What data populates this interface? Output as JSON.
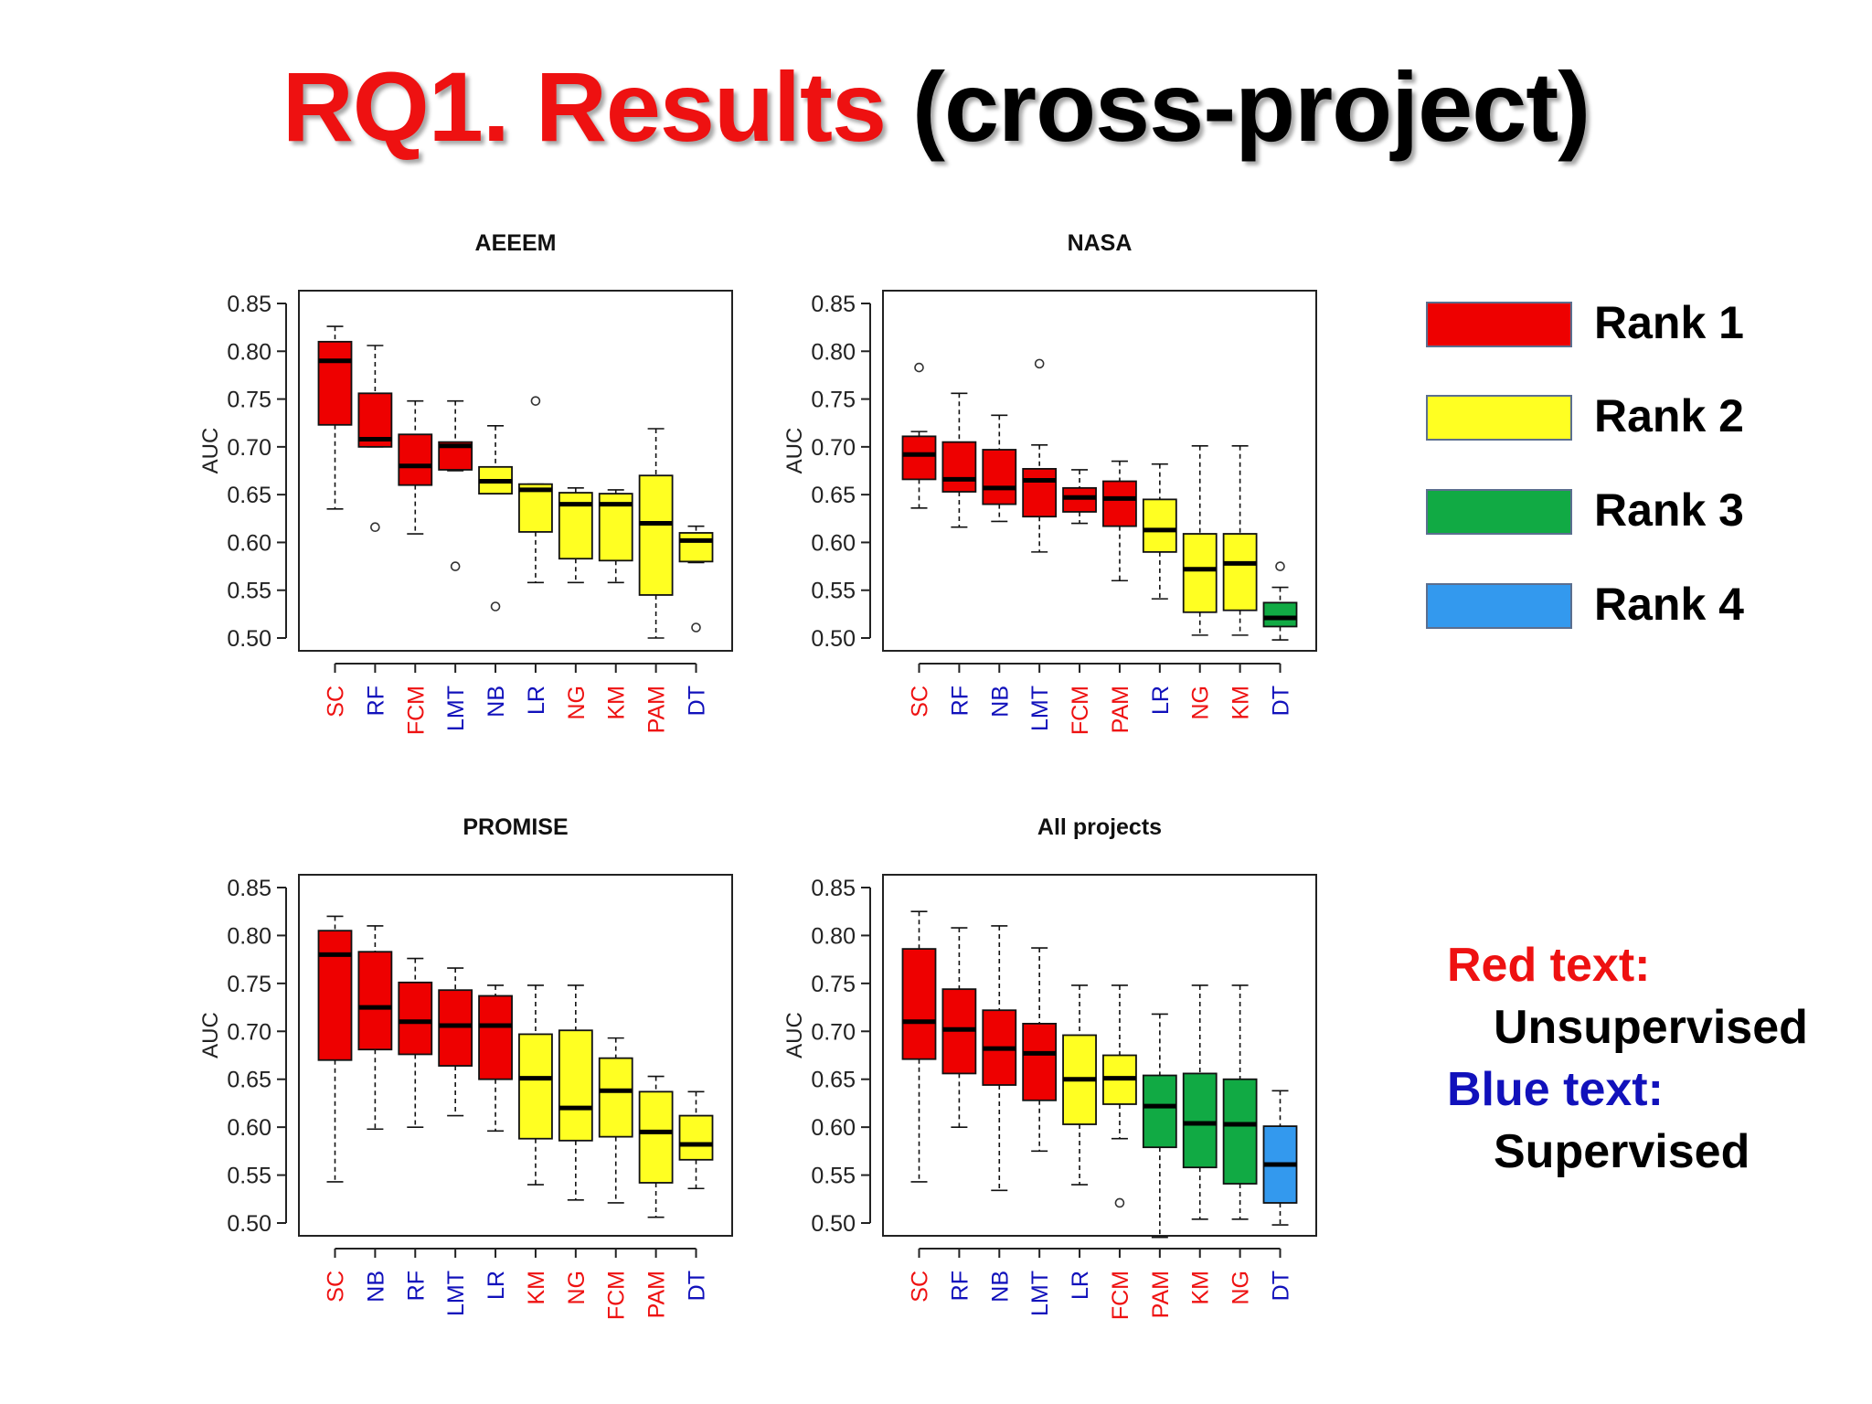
{
  "slide": {
    "title_red": "RQ1. Results",
    "title_black": "(cross-project)"
  },
  "colors": {
    "rank1": "#ee0000",
    "rank2": "#ffff22",
    "rank3": "#11aa44",
    "rank4": "#3399ee",
    "unsupervised_text": "#ee1111",
    "supervised_text": "#1111bb"
  },
  "legend": [
    {
      "label": "Rank 1",
      "color": "#ee0000"
    },
    {
      "label": "Rank 2",
      "color": "#ffff22"
    },
    {
      "label": "Rank 3",
      "color": "#11aa44"
    },
    {
      "label": "Rank 4",
      "color": "#3399ee"
    }
  ],
  "notes": {
    "red_heading": "Red text:",
    "red_desc": "Unsupervised",
    "blue_heading": "Blue text:",
    "blue_desc": "Supervised"
  },
  "chart_data": [
    {
      "type": "boxplot",
      "title": "AEEEM",
      "ylabel": "AUC",
      "ylim": [
        0.5,
        0.85
      ],
      "yticks": [
        "0.50",
        "0.55",
        "0.60",
        "0.65",
        "0.70",
        "0.75",
        "0.80",
        "0.85"
      ],
      "boxes": [
        {
          "name": "SC",
          "learner": "unsupervised",
          "rank": 1,
          "low": 0.635,
          "q1": 0.723,
          "median": 0.79,
          "q3": 0.81,
          "high": 0.826,
          "outliers": []
        },
        {
          "name": "RF",
          "learner": "supervised",
          "rank": 1,
          "low": 0.7,
          "q1": 0.7,
          "median": 0.708,
          "q3": 0.756,
          "high": 0.806,
          "outliers": [
            0.616
          ]
        },
        {
          "name": "FCM",
          "learner": "unsupervised",
          "rank": 1,
          "low": 0.609,
          "q1": 0.66,
          "median": 0.68,
          "q3": 0.713,
          "high": 0.748,
          "outliers": []
        },
        {
          "name": "LMT",
          "learner": "supervised",
          "rank": 1,
          "low": 0.675,
          "q1": 0.676,
          "median": 0.701,
          "q3": 0.705,
          "high": 0.748,
          "outliers": [
            0.575
          ]
        },
        {
          "name": "NB",
          "learner": "supervised",
          "rank": 2,
          "low": 0.651,
          "q1": 0.651,
          "median": 0.664,
          "q3": 0.679,
          "high": 0.722,
          "outliers": [
            0.533
          ]
        },
        {
          "name": "LR",
          "learner": "supervised",
          "rank": 2,
          "low": 0.558,
          "q1": 0.611,
          "median": 0.655,
          "q3": 0.661,
          "high": 0.661,
          "outliers": [
            0.748
          ]
        },
        {
          "name": "NG",
          "learner": "unsupervised",
          "rank": 2,
          "low": 0.558,
          "q1": 0.583,
          "median": 0.64,
          "q3": 0.652,
          "high": 0.657,
          "outliers": []
        },
        {
          "name": "KM",
          "learner": "unsupervised",
          "rank": 2,
          "low": 0.558,
          "q1": 0.581,
          "median": 0.64,
          "q3": 0.651,
          "high": 0.655,
          "outliers": []
        },
        {
          "name": "PAM",
          "learner": "unsupervised",
          "rank": 2,
          "low": 0.5,
          "q1": 0.545,
          "median": 0.62,
          "q3": 0.67,
          "high": 0.719,
          "outliers": []
        },
        {
          "name": "DT",
          "learner": "supervised",
          "rank": 2,
          "low": 0.579,
          "q1": 0.58,
          "median": 0.602,
          "q3": 0.61,
          "high": 0.617,
          "outliers": [
            0.511
          ]
        }
      ]
    },
    {
      "type": "boxplot",
      "title": "NASA",
      "ylabel": "AUC",
      "ylim": [
        0.5,
        0.85
      ],
      "yticks": [
        "0.50",
        "0.55",
        "0.60",
        "0.65",
        "0.70",
        "0.75",
        "0.80",
        "0.85"
      ],
      "boxes": [
        {
          "name": "SC",
          "learner": "unsupervised",
          "rank": 1,
          "low": 0.636,
          "q1": 0.666,
          "median": 0.692,
          "q3": 0.711,
          "high": 0.716,
          "outliers": [
            0.783
          ]
        },
        {
          "name": "RF",
          "learner": "supervised",
          "rank": 1,
          "low": 0.616,
          "q1": 0.653,
          "median": 0.666,
          "q3": 0.705,
          "high": 0.756,
          "outliers": []
        },
        {
          "name": "NB",
          "learner": "supervised",
          "rank": 1,
          "low": 0.622,
          "q1": 0.64,
          "median": 0.657,
          "q3": 0.697,
          "high": 0.733,
          "outliers": []
        },
        {
          "name": "LMT",
          "learner": "supervised",
          "rank": 1,
          "low": 0.59,
          "q1": 0.627,
          "median": 0.665,
          "q3": 0.677,
          "high": 0.702,
          "outliers": [
            0.787
          ]
        },
        {
          "name": "FCM",
          "learner": "unsupervised",
          "rank": 1,
          "low": 0.62,
          "q1": 0.632,
          "median": 0.647,
          "q3": 0.657,
          "high": 0.676,
          "outliers": []
        },
        {
          "name": "PAM",
          "learner": "unsupervised",
          "rank": 1,
          "low": 0.56,
          "q1": 0.617,
          "median": 0.646,
          "q3": 0.664,
          "high": 0.685,
          "outliers": []
        },
        {
          "name": "LR",
          "learner": "supervised",
          "rank": 2,
          "low": 0.541,
          "q1": 0.59,
          "median": 0.613,
          "q3": 0.645,
          "high": 0.682,
          "outliers": []
        },
        {
          "name": "NG",
          "learner": "unsupervised",
          "rank": 2,
          "low": 0.503,
          "q1": 0.527,
          "median": 0.572,
          "q3": 0.609,
          "high": 0.701,
          "outliers": []
        },
        {
          "name": "KM",
          "learner": "unsupervised",
          "rank": 2,
          "low": 0.503,
          "q1": 0.529,
          "median": 0.578,
          "q3": 0.609,
          "high": 0.701,
          "outliers": []
        },
        {
          "name": "DT",
          "learner": "supervised",
          "rank": 3,
          "low": 0.498,
          "q1": 0.512,
          "median": 0.521,
          "q3": 0.537,
          "high": 0.553,
          "outliers": [
            0.575
          ]
        }
      ]
    },
    {
      "type": "boxplot",
      "title": "PROMISE",
      "ylabel": "AUC",
      "ylim": [
        0.5,
        0.85
      ],
      "yticks": [
        "0.50",
        "0.55",
        "0.60",
        "0.65",
        "0.70",
        "0.75",
        "0.80",
        "0.85"
      ],
      "boxes": [
        {
          "name": "SC",
          "learner": "unsupervised",
          "rank": 1,
          "low": 0.543,
          "q1": 0.67,
          "median": 0.78,
          "q3": 0.805,
          "high": 0.82,
          "outliers": []
        },
        {
          "name": "NB",
          "learner": "supervised",
          "rank": 1,
          "low": 0.598,
          "q1": 0.681,
          "median": 0.725,
          "q3": 0.783,
          "high": 0.81,
          "outliers": []
        },
        {
          "name": "RF",
          "learner": "supervised",
          "rank": 1,
          "low": 0.6,
          "q1": 0.676,
          "median": 0.71,
          "q3": 0.751,
          "high": 0.776,
          "outliers": []
        },
        {
          "name": "LMT",
          "learner": "supervised",
          "rank": 1,
          "low": 0.612,
          "q1": 0.664,
          "median": 0.706,
          "q3": 0.743,
          "high": 0.766,
          "outliers": []
        },
        {
          "name": "LR",
          "learner": "supervised",
          "rank": 1,
          "low": 0.596,
          "q1": 0.65,
          "median": 0.706,
          "q3": 0.737,
          "high": 0.748,
          "outliers": []
        },
        {
          "name": "KM",
          "learner": "unsupervised",
          "rank": 2,
          "low": 0.54,
          "q1": 0.588,
          "median": 0.651,
          "q3": 0.697,
          "high": 0.748,
          "outliers": []
        },
        {
          "name": "NG",
          "learner": "unsupervised",
          "rank": 2,
          "low": 0.524,
          "q1": 0.586,
          "median": 0.62,
          "q3": 0.701,
          "high": 0.748,
          "outliers": []
        },
        {
          "name": "FCM",
          "learner": "unsupervised",
          "rank": 2,
          "low": 0.521,
          "q1": 0.59,
          "median": 0.638,
          "q3": 0.672,
          "high": 0.693,
          "outliers": []
        },
        {
          "name": "PAM",
          "learner": "unsupervised",
          "rank": 2,
          "low": 0.506,
          "q1": 0.542,
          "median": 0.595,
          "q3": 0.637,
          "high": 0.653,
          "outliers": []
        },
        {
          "name": "DT",
          "learner": "supervised",
          "rank": 2,
          "low": 0.536,
          "q1": 0.566,
          "median": 0.582,
          "q3": 0.612,
          "high": 0.637,
          "outliers": []
        }
      ]
    },
    {
      "type": "boxplot",
      "title": "All projects",
      "ylabel": "AUC",
      "ylim": [
        0.5,
        0.85
      ],
      "yticks": [
        "0.50",
        "0.55",
        "0.60",
        "0.65",
        "0.70",
        "0.75",
        "0.80",
        "0.85"
      ],
      "boxes": [
        {
          "name": "SC",
          "learner": "unsupervised",
          "rank": 1,
          "low": 0.543,
          "q1": 0.671,
          "median": 0.71,
          "q3": 0.786,
          "high": 0.825,
          "outliers": []
        },
        {
          "name": "RF",
          "learner": "supervised",
          "rank": 1,
          "low": 0.6,
          "q1": 0.656,
          "median": 0.702,
          "q3": 0.744,
          "high": 0.808,
          "outliers": []
        },
        {
          "name": "NB",
          "learner": "supervised",
          "rank": 1,
          "low": 0.534,
          "q1": 0.644,
          "median": 0.682,
          "q3": 0.722,
          "high": 0.81,
          "outliers": []
        },
        {
          "name": "LMT",
          "learner": "supervised",
          "rank": 1,
          "low": 0.575,
          "q1": 0.628,
          "median": 0.677,
          "q3": 0.708,
          "high": 0.787,
          "outliers": []
        },
        {
          "name": "LR",
          "learner": "supervised",
          "rank": 2,
          "low": 0.54,
          "q1": 0.603,
          "median": 0.65,
          "q3": 0.696,
          "high": 0.748,
          "outliers": []
        },
        {
          "name": "FCM",
          "learner": "unsupervised",
          "rank": 2,
          "low": 0.588,
          "q1": 0.624,
          "median": 0.651,
          "q3": 0.675,
          "high": 0.748,
          "outliers": [
            0.521
          ]
        },
        {
          "name": "PAM",
          "learner": "unsupervised",
          "rank": 3,
          "low": 0.485,
          "q1": 0.579,
          "median": 0.622,
          "q3": 0.654,
          "high": 0.718,
          "outliers": []
        },
        {
          "name": "KM",
          "learner": "unsupervised",
          "rank": 3,
          "low": 0.504,
          "q1": 0.558,
          "median": 0.604,
          "q3": 0.656,
          "high": 0.748,
          "outliers": []
        },
        {
          "name": "NG",
          "learner": "unsupervised",
          "rank": 3,
          "low": 0.504,
          "q1": 0.541,
          "median": 0.603,
          "q3": 0.65,
          "high": 0.748,
          "outliers": []
        },
        {
          "name": "DT",
          "learner": "supervised",
          "rank": 4,
          "low": 0.498,
          "q1": 0.521,
          "median": 0.561,
          "q3": 0.601,
          "high": 0.638,
          "outliers": []
        }
      ]
    }
  ]
}
